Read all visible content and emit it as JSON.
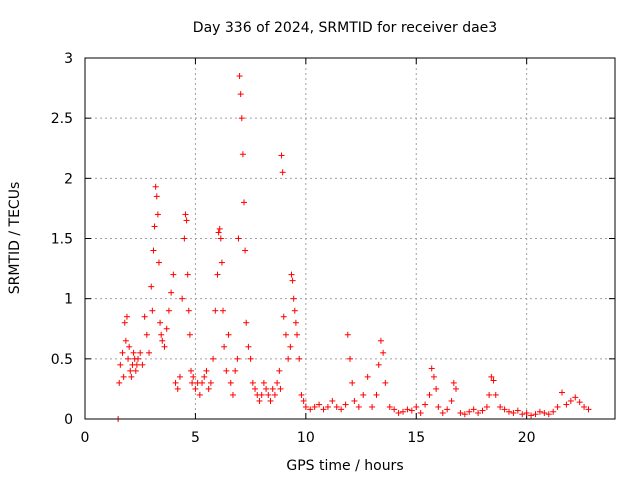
{
  "chart_data": {
    "type": "scatter",
    "title": "Day 336 of 2024, SRMTID for receiver dae3",
    "xlabel": "GPS time / hours",
    "ylabel": "SRMTID / TECUs",
    "xlim": [
      0,
      24
    ],
    "ylim": [
      0,
      3
    ],
    "x_ticks": [
      0,
      5,
      10,
      15,
      20
    ],
    "x_tick_labels": [
      "0",
      "5",
      "10",
      "15",
      "20"
    ],
    "y_ticks": [
      0,
      0.5,
      1,
      1.5,
      2,
      2.5,
      3
    ],
    "y_tick_labels": [
      "0",
      "0.5",
      "1",
      "1.5",
      "2",
      "2.5",
      "3"
    ],
    "grid": true,
    "marker": "plus",
    "color": "#ff0000",
    "series": [
      {
        "name": "SRMTID",
        "x": [
          1.5,
          1.55,
          1.6,
          1.7,
          1.75,
          1.8,
          1.85,
          1.9,
          1.95,
          2.0,
          2.05,
          2.1,
          2.15,
          2.2,
          2.25,
          2.3,
          2.35,
          2.4,
          2.5,
          2.6,
          2.7,
          2.8,
          2.9,
          3.0,
          3.05,
          3.1,
          3.15,
          3.2,
          3.25,
          3.3,
          3.35,
          3.4,
          3.45,
          3.5,
          3.6,
          3.7,
          3.8,
          3.9,
          4.0,
          4.1,
          4.2,
          4.3,
          4.4,
          4.5,
          4.55,
          4.6,
          4.65,
          4.7,
          4.75,
          4.8,
          4.85,
          4.9,
          5.0,
          5.1,
          5.2,
          5.3,
          5.4,
          5.5,
          5.6,
          5.7,
          5.8,
          5.9,
          6.0,
          6.05,
          6.1,
          6.15,
          6.2,
          6.25,
          6.3,
          6.4,
          6.5,
          6.6,
          6.7,
          6.8,
          6.9,
          6.95,
          7.0,
          7.05,
          7.1,
          7.15,
          7.2,
          7.25,
          7.3,
          7.4,
          7.5,
          7.6,
          7.7,
          7.8,
          7.9,
          8.0,
          8.1,
          8.2,
          8.3,
          8.4,
          8.5,
          8.6,
          8.7,
          8.8,
          8.85,
          8.9,
          8.95,
          9.0,
          9.1,
          9.2,
          9.3,
          9.35,
          9.4,
          9.45,
          9.5,
          9.55,
          9.6,
          9.7,
          9.8,
          9.9,
          10.0,
          10.2,
          10.4,
          10.6,
          10.8,
          11.0,
          11.2,
          11.4,
          11.6,
          11.8,
          11.9,
          12.0,
          12.1,
          12.2,
          12.4,
          12.6,
          12.8,
          13.0,
          13.2,
          13.3,
          13.4,
          13.5,
          13.6,
          13.8,
          14.0,
          14.2,
          14.4,
          14.6,
          14.8,
          15.0,
          15.2,
          15.4,
          15.6,
          15.7,
          15.8,
          15.9,
          16.0,
          16.2,
          16.4,
          16.6,
          16.7,
          16.8,
          17.0,
          17.2,
          17.4,
          17.6,
          17.8,
          18.0,
          18.2,
          18.3,
          18.4,
          18.5,
          18.6,
          18.8,
          19.0,
          19.2,
          19.4,
          19.6,
          19.8,
          20.0,
          20.2,
          20.4,
          20.6,
          20.8,
          21.0,
          21.2,
          21.4,
          21.6,
          21.8,
          22.0,
          22.2,
          22.4,
          22.6,
          22.8
        ],
        "y": [
          0.0,
          0.3,
          0.45,
          0.55,
          0.35,
          0.8,
          0.65,
          0.85,
          0.5,
          0.6,
          0.4,
          0.35,
          0.45,
          0.55,
          0.5,
          0.4,
          0.45,
          0.5,
          0.55,
          0.45,
          0.85,
          0.7,
          0.55,
          1.1,
          0.9,
          1.4,
          1.6,
          1.93,
          1.85,
          1.7,
          1.3,
          0.8,
          0.7,
          0.65,
          0.6,
          0.75,
          0.9,
          1.05,
          1.2,
          0.3,
          0.25,
          0.35,
          1.0,
          1.5,
          1.7,
          1.65,
          1.2,
          0.9,
          0.7,
          0.4,
          0.3,
          0.35,
          0.25,
          0.3,
          0.2,
          0.3,
          0.35,
          0.4,
          0.25,
          0.3,
          0.5,
          0.9,
          1.2,
          1.55,
          1.58,
          1.5,
          1.3,
          0.9,
          0.6,
          0.4,
          0.7,
          0.3,
          0.2,
          0.4,
          0.5,
          1.5,
          2.85,
          2.7,
          2.5,
          2.2,
          1.8,
          1.4,
          0.8,
          0.6,
          0.5,
          0.3,
          0.25,
          0.2,
          0.15,
          0.2,
          0.3,
          0.25,
          0.2,
          0.15,
          0.25,
          0.2,
          0.3,
          0.4,
          0.25,
          2.19,
          2.05,
          0.85,
          0.7,
          0.5,
          0.6,
          1.2,
          1.15,
          1.0,
          0.9,
          0.8,
          0.7,
          0.5,
          0.2,
          0.15,
          0.1,
          0.08,
          0.1,
          0.12,
          0.08,
          0.1,
          0.15,
          0.1,
          0.08,
          0.12,
          0.7,
          0.5,
          0.3,
          0.15,
          0.1,
          0.2,
          0.35,
          0.1,
          0.2,
          0.45,
          0.65,
          0.55,
          0.3,
          0.1,
          0.08,
          0.05,
          0.06,
          0.08,
          0.07,
          0.1,
          0.05,
          0.12,
          0.2,
          0.42,
          0.35,
          0.25,
          0.1,
          0.05,
          0.08,
          0.15,
          0.3,
          0.25,
          0.05,
          0.04,
          0.06,
          0.08,
          0.05,
          0.07,
          0.1,
          0.2,
          0.35,
          0.32,
          0.2,
          0.1,
          0.08,
          0.06,
          0.05,
          0.07,
          0.04,
          0.05,
          0.03,
          0.04,
          0.06,
          0.05,
          0.04,
          0.06,
          0.1,
          0.22,
          0.12,
          0.15,
          0.18,
          0.14,
          0.1,
          0.08
        ]
      }
    ]
  }
}
